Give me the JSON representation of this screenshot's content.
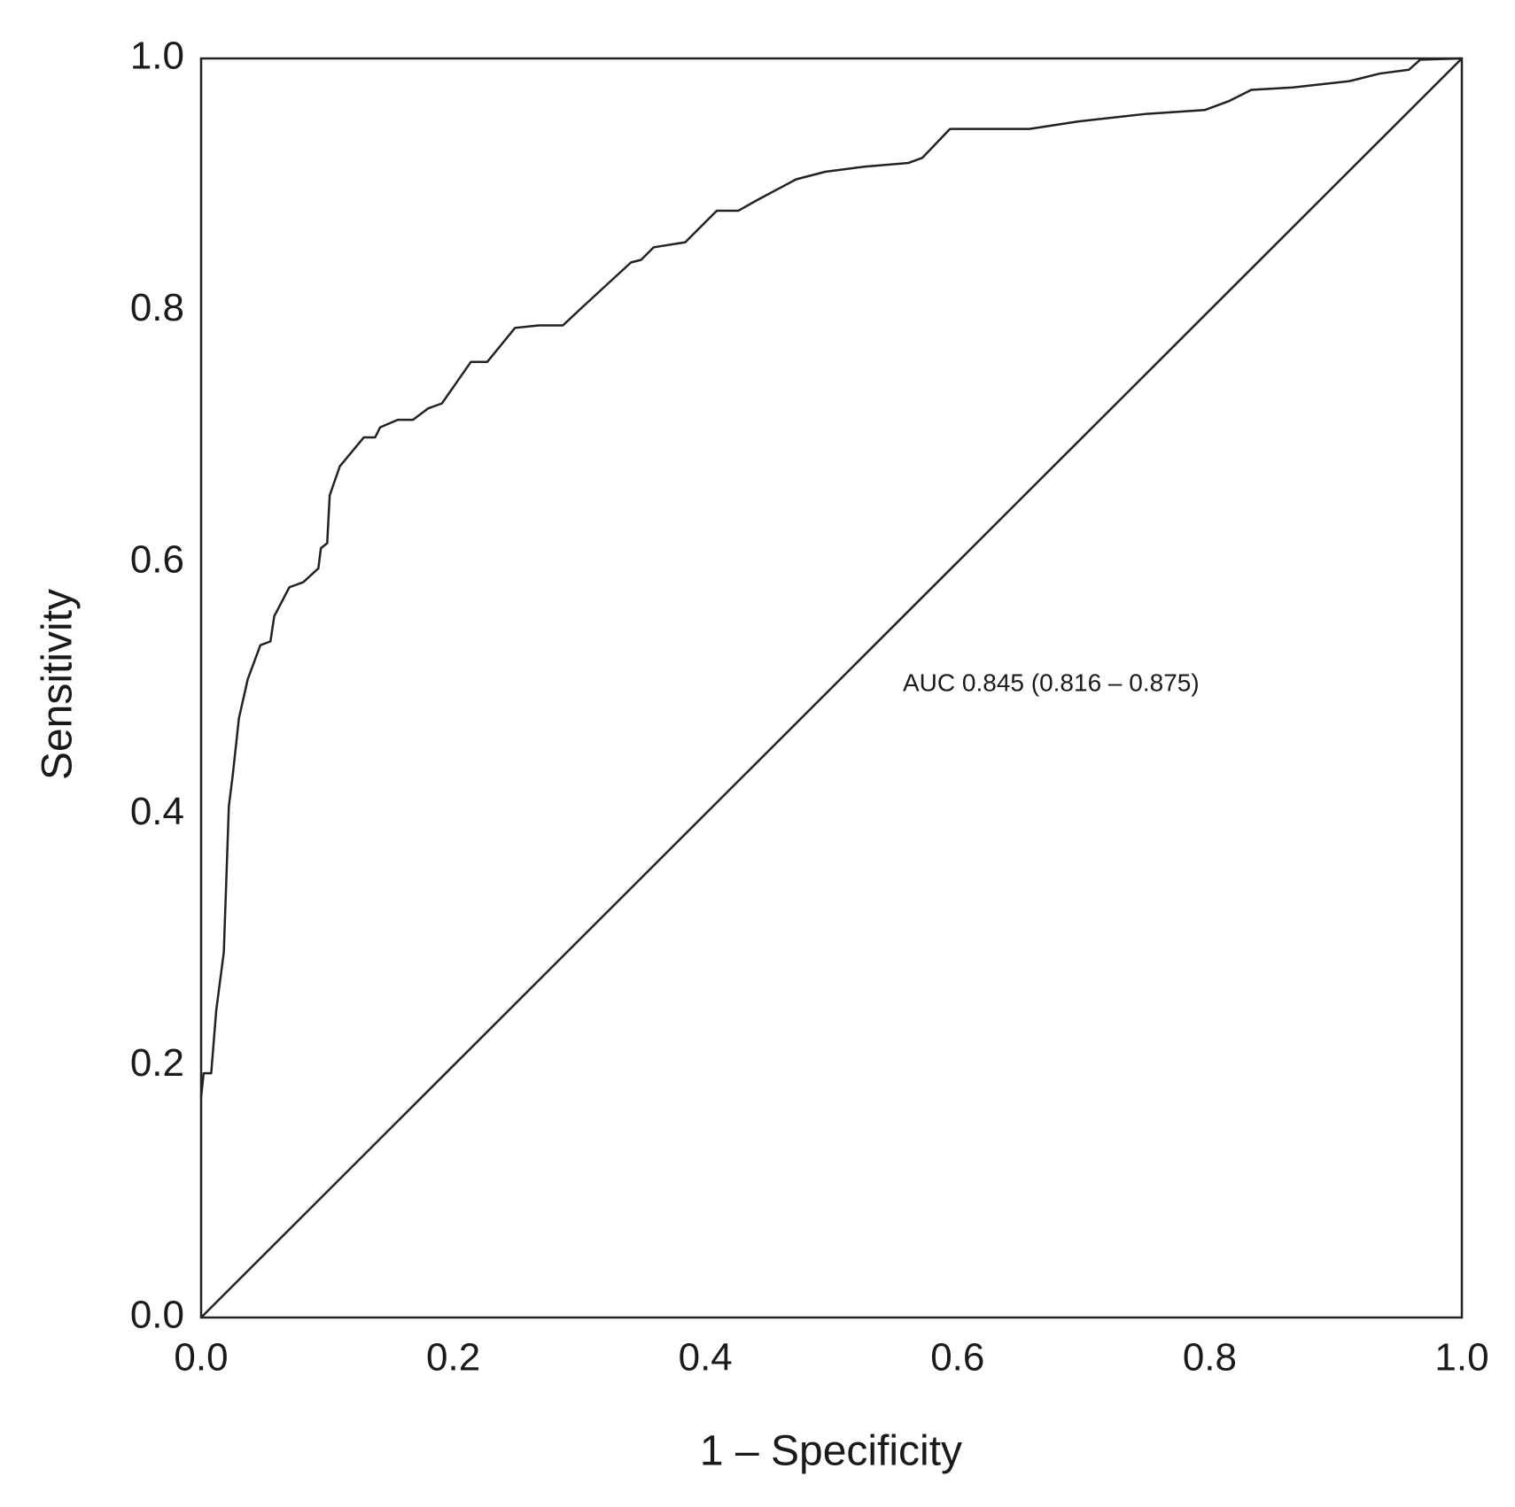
{
  "chart_data": {
    "type": "line",
    "xlabel": "1 – Specificity",
    "ylabel": "Sensitivity",
    "annotation": "AUC 0.845 (0.816 – 0.875)",
    "xlim": [
      0,
      1
    ],
    "ylim": [
      0,
      1
    ],
    "xticks": [
      {
        "value": 0,
        "label": "0.0"
      },
      0.2,
      0.4,
      0.6,
      0.8,
      {
        "value": 1,
        "label": "1.0"
      }
    ],
    "yticks": [
      {
        "value": 0,
        "label": "0.0"
      },
      0.2,
      0.4,
      0.6,
      0.8,
      {
        "value": 1,
        "label": "1.0"
      }
    ],
    "series": [
      {
        "color": "#222222",
        "x": [
          0,
          0.002,
          0.008,
          0.012,
          0.018,
          0.022,
          0.025,
          0.03,
          0.037,
          0.047,
          0.055,
          0.058,
          0.07,
          0.081,
          0.093,
          0.095,
          0.1,
          0.102,
          0.11,
          0.129,
          0.138,
          0.142,
          0.156,
          0.168,
          0.18,
          0.191,
          0.214,
          0.227,
          0.249,
          0.268,
          0.287,
          0.303,
          0.341,
          0.349,
          0.359,
          0.384,
          0.409,
          0.426,
          0.442,
          0.472,
          0.495,
          0.526,
          0.561,
          0.572,
          0.594,
          0.657,
          0.696,
          0.75,
          0.796,
          0.815,
          0.833,
          0.866,
          0.911,
          0.935,
          0.958,
          0.967,
          1
        ],
        "values": [
          0.175,
          0.194,
          0.194,
          0.244,
          0.29,
          0.406,
          0.43,
          0.476,
          0.507,
          0.534,
          0.537,
          0.557,
          0.58,
          0.584,
          0.595,
          0.611,
          0.615,
          0.653,
          0.676,
          0.699,
          0.699,
          0.707,
          0.713,
          0.713,
          0.722,
          0.726,
          0.759,
          0.759,
          0.786,
          0.788,
          0.788,
          0.803,
          0.838,
          0.84,
          0.85,
          0.854,
          0.879,
          0.879,
          0.888,
          0.904,
          0.91,
          0.914,
          0.917,
          0.921,
          0.944,
          0.944,
          0.95,
          0.956,
          0.959,
          0.966,
          0.975,
          0.977,
          0.982,
          0.988,
          0.991,
          0.999,
          1
        ]
      },
      {
        "color": "#222222",
        "x": [
          0,
          1
        ],
        "values": [
          0,
          1
        ]
      }
    ]
  }
}
